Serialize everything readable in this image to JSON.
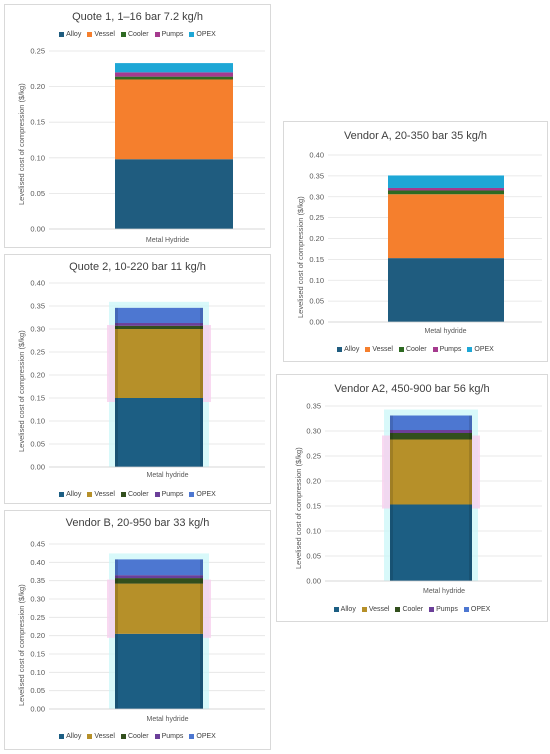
{
  "colors": {
    "alloy_a": "#1f5c7f",
    "vessel_a": "#f57f2d",
    "cooler_a": "#2e6a22",
    "pumps_a": "#a53a8e",
    "opex_a": "#1ea7d6",
    "alloy_b": "#1c5e83",
    "vessel_b": "#b69029",
    "cooler_b": "#324f1d",
    "pumps_b": "#6b3f99",
    "opex_b": "#4d77d1"
  },
  "chart_data": [
    {
      "id": "quote1",
      "type": "bar",
      "stacked": true,
      "title": "Quote 1, 1–16 bar 7.2 kg/h",
      "ylabel": "Levelised cost of compression ($/kg)",
      "xlabel": "",
      "categories": [
        "Metal Hydride"
      ],
      "ylim": [
        0,
        0.25
      ],
      "yticks": [
        "0.00",
        "0.05",
        "0.10",
        "0.15",
        "0.20",
        "0.25"
      ],
      "legend_position": "top",
      "series": [
        {
          "name": "Alloy",
          "values": [
            0.098
          ]
        },
        {
          "name": "Vessel",
          "values": [
            0.112
          ]
        },
        {
          "name": "Cooler",
          "values": [
            0.004
          ]
        },
        {
          "name": "Pumps",
          "values": [
            0.006
          ]
        },
        {
          "name": "OPEX",
          "values": [
            0.013
          ]
        }
      ]
    },
    {
      "id": "quote2",
      "type": "bar",
      "stacked": true,
      "title": "Quote 2, 10-220 bar 11 kg/h",
      "ylabel": "Levelised cost of compression ($/kg)",
      "xlabel": "",
      "categories": [
        "Metal hydride"
      ],
      "ylim": [
        0,
        0.4
      ],
      "yticks": [
        "0.00",
        "0.05",
        "0.10",
        "0.15",
        "0.20",
        "0.25",
        "0.30",
        "0.35",
        "0.40"
      ],
      "legend_position": "bottom",
      "series": [
        {
          "name": "Alloy",
          "values": [
            0.15
          ]
        },
        {
          "name": "Vessel",
          "values": [
            0.15
          ]
        },
        {
          "name": "Cooler",
          "values": [
            0.007
          ]
        },
        {
          "name": "Pumps",
          "values": [
            0.006
          ]
        },
        {
          "name": "OPEX",
          "values": [
            0.033
          ]
        }
      ]
    },
    {
      "id": "vendorb",
      "type": "bar",
      "stacked": true,
      "title": "Vendor B, 20-950 bar 33 kg/h",
      "ylabel": "Levelised cost of compression ($/kg)",
      "xlabel": "",
      "categories": [
        "Metal hydride"
      ],
      "ylim": [
        0,
        0.45
      ],
      "yticks": [
        "0.00",
        "0.05",
        "0.10",
        "0.15",
        "0.20",
        "0.25",
        "0.30",
        "0.35",
        "0.40",
        "0.45"
      ],
      "legend_position": "bottom",
      "series": [
        {
          "name": "Alloy",
          "values": [
            0.205
          ]
        },
        {
          "name": "Vessel",
          "values": [
            0.137
          ]
        },
        {
          "name": "Cooler",
          "values": [
            0.015
          ]
        },
        {
          "name": "Pumps",
          "values": [
            0.008
          ]
        },
        {
          "name": "OPEX",
          "values": [
            0.043
          ]
        }
      ]
    },
    {
      "id": "vendora",
      "type": "bar",
      "stacked": true,
      "title": "Vendor A, 20-350 bar 35 kg/h",
      "ylabel": "Levelised cost of compression ($/kg)",
      "xlabel": "",
      "categories": [
        "Metal hydride"
      ],
      "ylim": [
        0,
        0.4
      ],
      "yticks": [
        "0.00",
        "0.05",
        "0.10",
        "0.15",
        "0.20",
        "0.25",
        "0.30",
        "0.35",
        "0.40"
      ],
      "legend_position": "bottom",
      "series": [
        {
          "name": "Alloy",
          "values": [
            0.153
          ]
        },
        {
          "name": "Vessel",
          "values": [
            0.153
          ]
        },
        {
          "name": "Cooler",
          "values": [
            0.009
          ]
        },
        {
          "name": "Pumps",
          "values": [
            0.006
          ]
        },
        {
          "name": "OPEX",
          "values": [
            0.03
          ]
        }
      ]
    },
    {
      "id": "vendora2",
      "type": "bar",
      "stacked": true,
      "title": "Vendor A2, 450-900 bar 56 kg/h",
      "ylabel": "Levelised cost of compression ($/kg)",
      "xlabel": "",
      "categories": [
        "Metal hydride"
      ],
      "ylim": [
        0,
        0.35
      ],
      "yticks": [
        "0.00",
        "0.05",
        "0.10",
        "0.15",
        "0.20",
        "0.25",
        "0.30",
        "0.35"
      ],
      "legend_position": "bottom",
      "series": [
        {
          "name": "Alloy",
          "values": [
            0.153
          ]
        },
        {
          "name": "Vessel",
          "values": [
            0.13
          ]
        },
        {
          "name": "Cooler",
          "values": [
            0.013
          ]
        },
        {
          "name": "Pumps",
          "values": [
            0.006
          ]
        },
        {
          "name": "OPEX",
          "values": [
            0.029
          ]
        }
      ]
    }
  ]
}
